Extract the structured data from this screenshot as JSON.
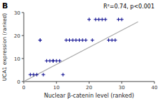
{
  "chart_data": {
    "type": "scatter",
    "title": "B",
    "x_label": "Nuclear β-catenin level (ranked)",
    "y_label": "UCA1 expression (ranked)",
    "annotation": "R²=0.74, p<0.001",
    "xlim": [
      0,
      40
    ],
    "ylim": [
      0,
      30
    ],
    "xticks": [
      0,
      10,
      20,
      30,
      40
    ],
    "yticks": [
      0,
      10,
      20,
      30
    ],
    "series": [
      {
        "type": "scatter",
        "color": "#00008B",
        "marker": "plus",
        "x": [
          2,
          3,
          4,
          5,
          5,
          6,
          7,
          8,
          9,
          9,
          10,
          11,
          12,
          13,
          14,
          15,
          16,
          17,
          18,
          19,
          20,
          21,
          22,
          23,
          24,
          25,
          26,
          27,
          28,
          29,
          30
        ],
        "values": [
          3,
          3,
          3,
          18,
          18,
          3,
          9,
          9,
          9,
          9,
          9,
          9,
          3,
          18,
          18,
          18,
          18,
          18,
          18,
          18,
          27,
          18,
          27,
          27,
          27,
          27,
          18,
          18,
          18,
          27,
          27
        ]
      },
      {
        "type": "line",
        "color": "#A9A9A9",
        "x": [
          0,
          35
        ],
        "values": [
          0,
          26
        ]
      }
    ]
  }
}
